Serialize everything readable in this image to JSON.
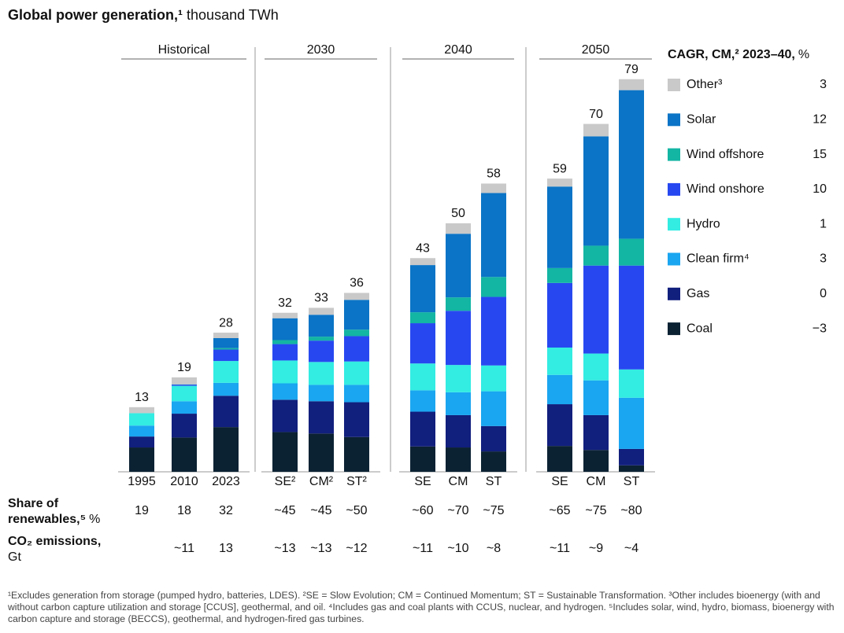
{
  "chart_data": {
    "type": "stacked_bar",
    "title": "Global power generation,¹",
    "subtitle": "thousand TWh",
    "groups": [
      {
        "label": "Historical",
        "span": [
          0,
          2
        ]
      },
      {
        "label": "2030",
        "span": [
          3,
          5
        ]
      },
      {
        "label": "2040",
        "span": [
          6,
          8
        ]
      },
      {
        "label": "2050",
        "span": [
          9,
          11
        ]
      }
    ],
    "categories": [
      "1995",
      "2010",
      "2023",
      "SE²",
      "CM²",
      "ST²",
      "SE",
      "CM",
      "ST",
      "SE",
      "CM",
      "ST"
    ],
    "totals": [
      13,
      19,
      28,
      32,
      33,
      36,
      43,
      50,
      58,
      59,
      70,
      79
    ],
    "series": [
      {
        "name": "Coal",
        "color": "#0b2233",
        "values": [
          4.9,
          6.9,
          9.0,
          8.0,
          7.7,
          7.0,
          5.1,
          4.9,
          4.1,
          5.2,
          4.4,
          1.3
        ]
      },
      {
        "name": "Gas",
        "color": "#111f7d",
        "values": [
          2.2,
          4.8,
          6.3,
          6.5,
          6.5,
          7.0,
          7.0,
          6.5,
          5.1,
          8.4,
          7.0,
          3.3
        ]
      },
      {
        "name": "Clean firm⁴",
        "color": "#1aa6f0",
        "values": [
          2.2,
          2.5,
          2.6,
          3.3,
          3.3,
          3.5,
          4.3,
          4.6,
          7.0,
          5.9,
          7.0,
          10.3
        ]
      },
      {
        "name": "Hydro",
        "color": "#33ece2",
        "values": [
          2.5,
          3.1,
          4.4,
          4.6,
          4.6,
          4.7,
          5.4,
          5.5,
          5.2,
          5.5,
          5.4,
          5.7
        ]
      },
      {
        "name": "Wind onshore",
        "color": "#2748f0",
        "values": [
          0,
          0.2,
          2.3,
          3.3,
          4.3,
          5.1,
          8.1,
          10.9,
          13.8,
          13.0,
          17.7,
          20.9
        ]
      },
      {
        "name": "Wind offshore",
        "color": "#13b5a3",
        "values": [
          0,
          0,
          0.3,
          0.8,
          0.8,
          1.3,
          2.2,
          2.7,
          4.0,
          3.0,
          4.0,
          5.4
        ]
      },
      {
        "name": "Solar",
        "color": "#0b74c6",
        "values": [
          0,
          0.1,
          2.0,
          4.4,
          4.4,
          6.0,
          9.5,
          12.8,
          16.9,
          16.4,
          22.0,
          29.9
        ]
      },
      {
        "name": "Other³",
        "color": "#c9c9c9",
        "values": [
          1.2,
          1.4,
          1.1,
          1.1,
          1.4,
          1.4,
          1.4,
          2.1,
          1.9,
          1.6,
          2.5,
          2.2
        ]
      }
    ],
    "legend_title": "CAGR, CM,² 2023–40,",
    "legend_unit": "%",
    "cagr": [
      -3,
      0,
      3,
      1,
      10,
      15,
      12,
      3
    ],
    "cagr_labels": [
      "−3",
      "0",
      "3",
      "1",
      "10",
      "15",
      "12",
      "3"
    ],
    "rows": [
      {
        "label": "Share of",
        "label2": "renewables,⁵",
        "unit": "%",
        "values": [
          19,
          18,
          32,
          "~45",
          "~45",
          "~50",
          "~60",
          "~70",
          "~75",
          "~65",
          "~75",
          "~80"
        ]
      },
      {
        "label": "CO₂ emissions,",
        "label2": "Gt",
        "values": [
          null,
          "~11",
          13,
          "~13",
          "~13",
          "~12",
          "~11",
          "~10",
          "~8",
          "~11",
          "~9",
          "~4"
        ]
      }
    ]
  },
  "footnote": "¹Excludes generation from storage (pumped hydro, batteries, LDES). ²SE = Slow Evolution; CM = Continued Momentum; ST = Sustainable Transformation. ³Other includes bioenergy (with and without carbon capture utilization and storage [CCUS], geothermal, and oil. ⁴Includes gas and coal plants with CCUS, nuclear, and hydrogen. ⁵Includes solar, wind, hydro, biomass, bioenergy with carbon capture and storage (BECCS), geothermal, and hydrogen-fired gas turbines."
}
